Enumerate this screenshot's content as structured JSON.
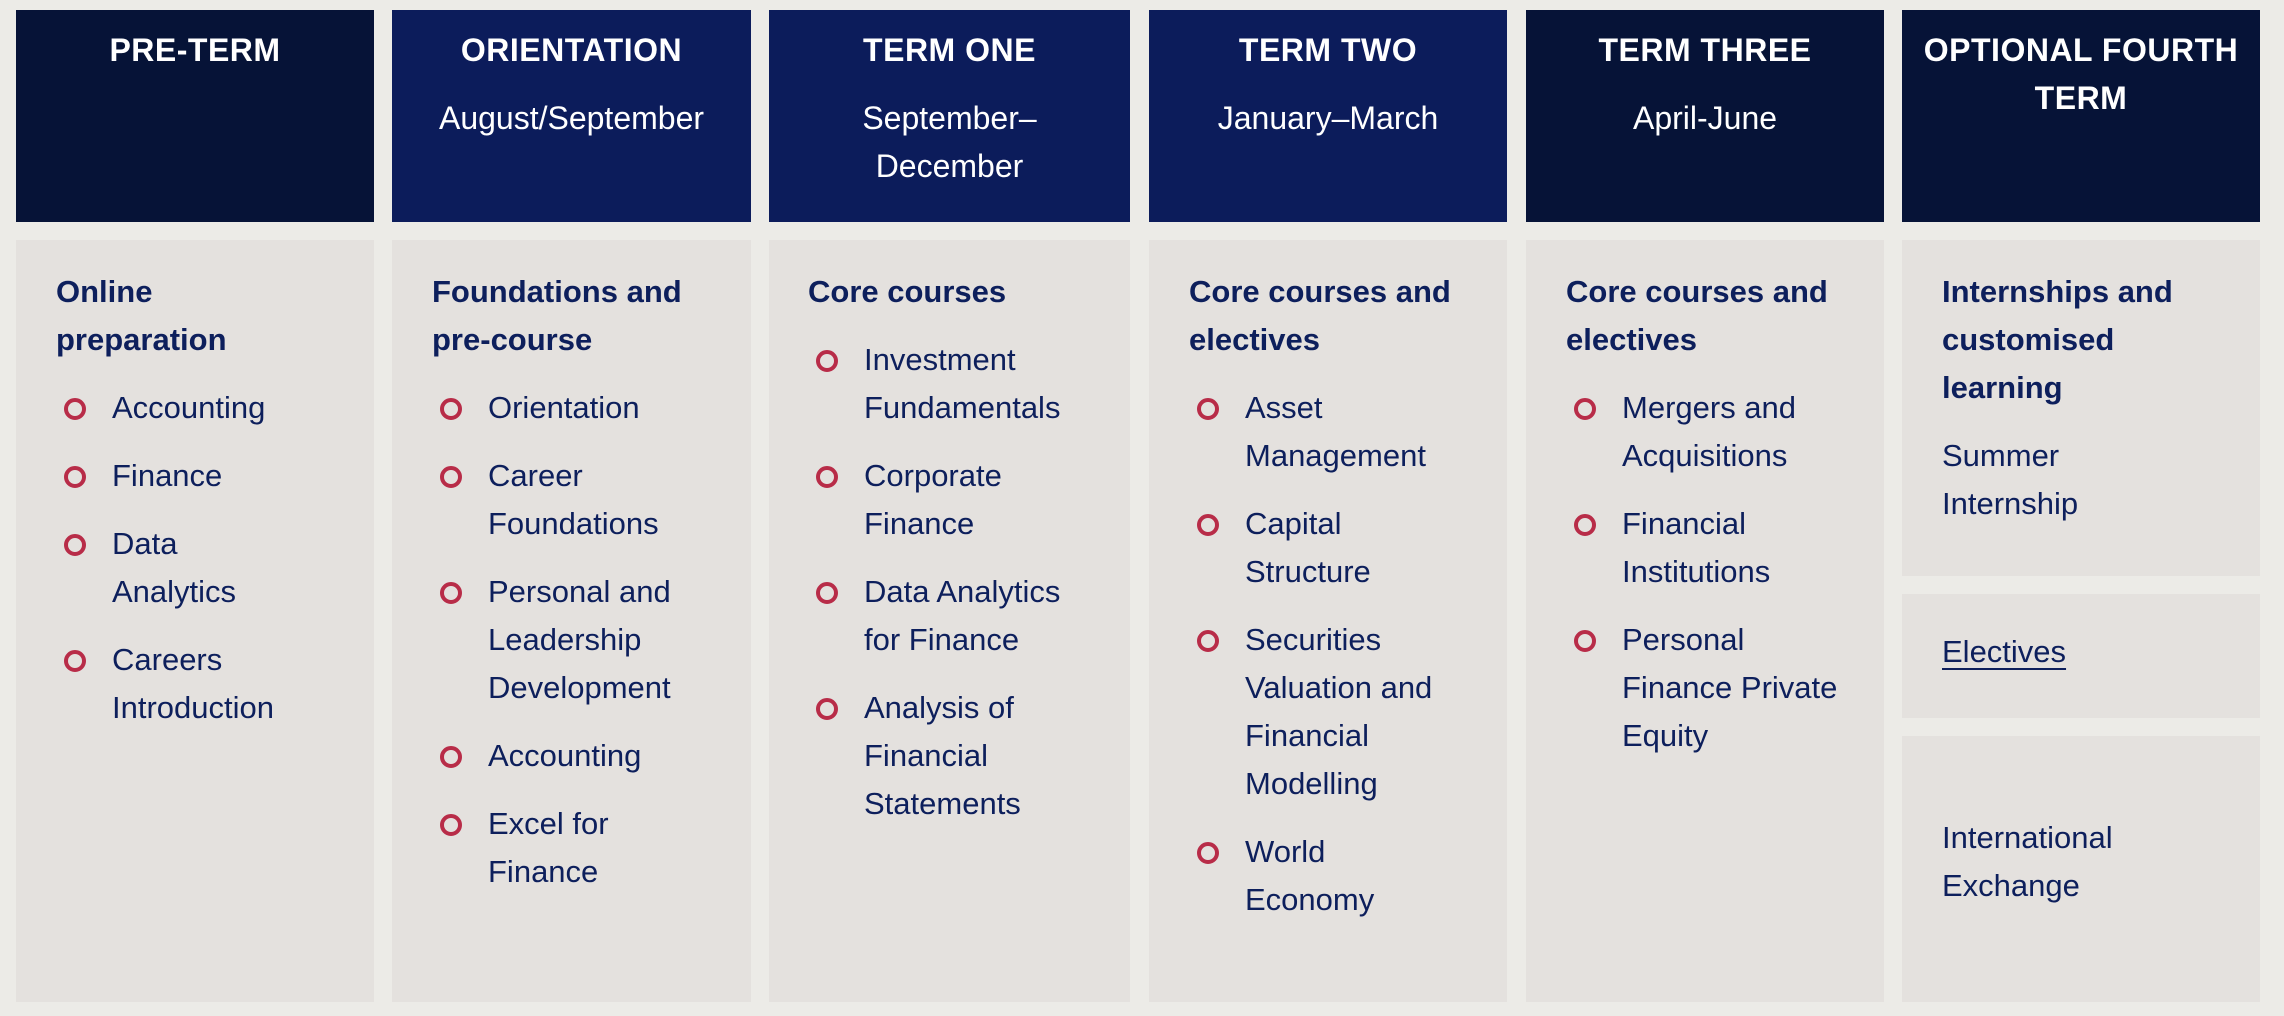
{
  "columns": [
    {
      "header": {
        "title": "PRE-TERM",
        "subtitle": ""
      },
      "panel": {
        "title": "Online preparation",
        "items": [
          "Accounting",
          "Finance",
          "Data Analytics",
          "Careers Introduction"
        ]
      }
    },
    {
      "header": {
        "title": "ORIENTATION",
        "subtitle": "August/September"
      },
      "panel": {
        "title": "Foundations and pre-course",
        "items": [
          "Orientation",
          "Career Foundations",
          "Personal and Leadership Development",
          "Accounting",
          "Excel for Finance"
        ]
      }
    },
    {
      "header": {
        "title": "TERM ONE",
        "subtitle": "September–December"
      },
      "panel": {
        "title": "Core courses",
        "items": [
          "Investment Fundamentals",
          "Corporate Finance",
          "Data Analytics for Finance",
          "Analysis of Financial Statements"
        ]
      }
    },
    {
      "header": {
        "title": "TERM TWO",
        "subtitle": "January–March"
      },
      "panel": {
        "title": "Core courses and electives",
        "items": [
          "Asset Management",
          "Capital Structure",
          "Securities Valuation and Financial Modelling",
          "World Economy"
        ]
      }
    },
    {
      "header": {
        "title": "TERM THREE",
        "subtitle": "April-June"
      },
      "panel": {
        "title": "Core courses and electives",
        "items": [
          "Mergers and Acquisitions",
          "Financial Institutions",
          "Personal Finance Private Equity"
        ]
      }
    },
    {
      "header": {
        "title": "OPTIONAL FOURTH TERM",
        "subtitle": ""
      },
      "panels": [
        {
          "title": "Internships and customised learning",
          "text": "Summer Internship"
        },
        {
          "link": "Electives"
        },
        {
          "text": "International Exchange"
        }
      ]
    }
  ],
  "colors": {
    "header_dark": "#061337",
    "header_mid": "#0c1c5b",
    "panel_bg": "#e4e1de",
    "text": "#0d1f5c",
    "bullet": "#b82c48",
    "page_bg": "#ecebe7"
  }
}
